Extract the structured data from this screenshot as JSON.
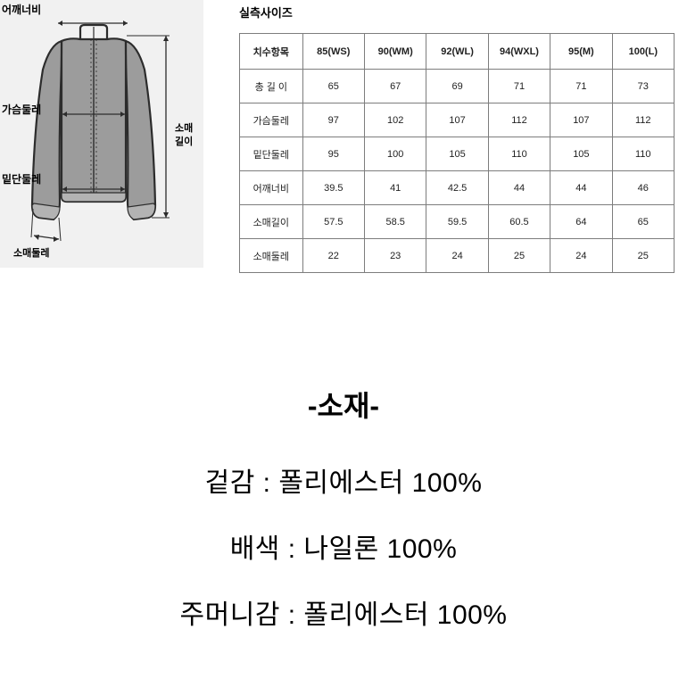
{
  "diagram": {
    "labels": {
      "shoulder": "어깨너비",
      "chest": "가슴둘레",
      "hem": "밑단둘레",
      "sleeve_hem": "소매둘레",
      "sleeve_len1": "소매",
      "sleeve_len2": "길이"
    },
    "background_color": "#f1f1f1",
    "line_color": "#2c2c2c",
    "fill_color": "#9c9c9c"
  },
  "size_table": {
    "title": "실측사이즈",
    "columns": [
      "치수항목",
      "85(WS)",
      "90(WM)",
      "92(WL)",
      "94(WXL)",
      "95(M)",
      "100(L)"
    ],
    "rows": [
      [
        "총 길 이",
        "65",
        "67",
        "69",
        "71",
        "71",
        "73"
      ],
      [
        "가슴둘레",
        "97",
        "102",
        "107",
        "112",
        "107",
        "112"
      ],
      [
        "밑단둘레",
        "95",
        "100",
        "105",
        "110",
        "105",
        "110"
      ],
      [
        "어깨너비",
        "39.5",
        "41",
        "42.5",
        "44",
        "44",
        "46"
      ],
      [
        "소매길이",
        "57.5",
        "58.5",
        "59.5",
        "60.5",
        "64",
        "65"
      ],
      [
        "소매둘레",
        "22",
        "23",
        "24",
        "25",
        "24",
        "25"
      ]
    ],
    "border_color": "#7d7d7d",
    "font_size": 11
  },
  "material": {
    "title": "-소재-",
    "lines": [
      "겉감 : 폴리에스터 100%",
      "배색 : 나일론 100%",
      "주머니감 : 폴리에스터 100%"
    ],
    "title_fontsize": 32,
    "line_fontsize": 30
  }
}
